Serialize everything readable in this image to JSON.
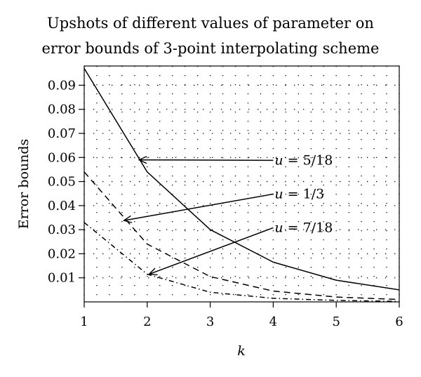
{
  "chart_data": {
    "type": "line",
    "title_lines": [
      "Upshots of different values of parameter on",
      "error bounds of 3-point interpolating scheme"
    ],
    "xlabel": "k",
    "ylabel": "Error bounds",
    "xlim": [
      1,
      6
    ],
    "ylim": [
      0,
      0.098
    ],
    "x_ticks": [
      1,
      2,
      3,
      4,
      5,
      6
    ],
    "y_ticks": [
      0.01,
      0.02,
      0.03,
      0.04,
      0.05,
      0.06,
      0.07,
      0.08,
      0.09
    ],
    "y_tick_labels": [
      "0.01",
      "0.02",
      "0.03",
      "0.04",
      "0.05",
      "0.06",
      "0.07",
      "0.08",
      "0.09"
    ],
    "grid": "dotted",
    "x": [
      1,
      2,
      3,
      4,
      5,
      6
    ],
    "series": [
      {
        "values": [
          0.097,
          0.054,
          0.03,
          0.0165,
          0.009,
          0.005
        ],
        "line_style": "solid"
      },
      {
        "values": [
          0.054,
          0.024,
          0.0105,
          0.0045,
          0.002,
          0.001
        ],
        "line_style": "dashed"
      },
      {
        "values": [
          0.033,
          0.0115,
          0.004,
          0.0015,
          0.0006,
          0.0002
        ],
        "line_style": "dash-dot"
      }
    ],
    "annotations": [
      {
        "var": "u",
        "text": " = 5/18",
        "label_x": 4.0,
        "label_y": 0.0588,
        "points_to_x": 1.87,
        "points_to_y": 0.059,
        "series_index": 0
      },
      {
        "var": "u",
        "text": " = 1/3",
        "label_x": 4.0,
        "label_y": 0.0448,
        "points_to_x": 1.63,
        "points_to_y": 0.0338,
        "series_index": 1
      },
      {
        "var": "u",
        "text": " = 7/18",
        "label_x": 4.0,
        "label_y": 0.0308,
        "points_to_x": 2.03,
        "points_to_y": 0.0115,
        "series_index": 2
      }
    ]
  }
}
